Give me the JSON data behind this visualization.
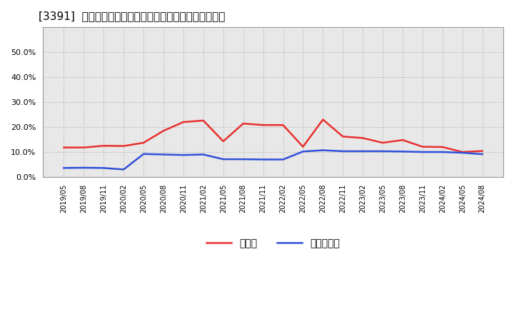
{
  "title": "[3391]  現預金、有利子負債の総資産に対する比率の推移",
  "x_labels": [
    "2019/05",
    "2019/08",
    "2019/11",
    "2020/02",
    "2020/05",
    "2020/08",
    "2020/11",
    "2021/02",
    "2021/05",
    "2021/08",
    "2021/11",
    "2022/02",
    "2022/05",
    "2022/08",
    "2022/11",
    "2023/02",
    "2023/05",
    "2023/08",
    "2023/11",
    "2024/02",
    "2024/05",
    "2024/08"
  ],
  "cash_ratio": [
    0.118,
    0.118,
    0.125,
    0.124,
    0.137,
    0.185,
    0.22,
    0.226,
    0.143,
    0.214,
    0.208,
    0.208,
    0.121,
    0.23,
    0.162,
    0.156,
    0.137,
    0.148,
    0.121,
    0.12,
    0.1,
    0.104
  ],
  "debt_ratio": [
    0.036,
    0.037,
    0.036,
    0.03,
    0.092,
    0.09,
    0.088,
    0.09,
    0.071,
    0.071,
    0.07,
    0.07,
    0.102,
    0.107,
    0.103,
    0.103,
    0.103,
    0.102,
    0.1,
    0.1,
    0.097,
    0.091
  ],
  "cash_color": "#e83030",
  "debt_color": "#3050d8",
  "bg_color": "#ffffff",
  "plot_bg_color": "#e8e8e8",
  "grid_color": "#aaaaaa",
  "ylim": [
    0.0,
    0.6
  ],
  "yticks": [
    0.0,
    0.1,
    0.2,
    0.3,
    0.4,
    0.5
  ],
  "legend_cash": "現預金",
  "legend_debt": "有利子負債",
  "line_width": 1.8
}
